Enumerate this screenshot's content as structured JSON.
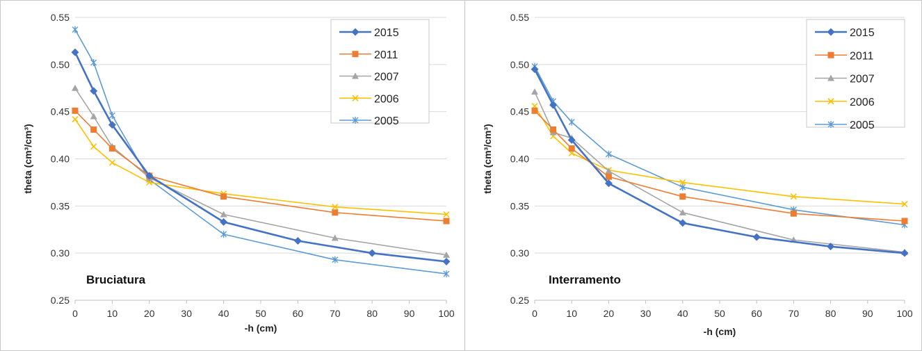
{
  "colors": {
    "2015": "#4472C4",
    "2011": "#ED7D31",
    "2007": "#A5A5A5",
    "2006": "#FFC000",
    "2005": "#5B9BD5",
    "grid": "#d9d9d9",
    "axis": "#bfbfbf"
  },
  "chart_data": [
    {
      "type": "line",
      "panel_label": "Bruciatura",
      "xlabel": "-h (cm)",
      "ylabel": "theta (cm³/cm³)",
      "xlim": [
        0,
        100
      ],
      "ylim": [
        0.25,
        0.55
      ],
      "xticks": [
        "0",
        "10",
        "20",
        "30",
        "40",
        "50",
        "60",
        "70",
        "80",
        "90",
        "100"
      ],
      "yticks": [
        "0.25",
        "0.30",
        "0.35",
        "0.40",
        "0.45",
        "0.50",
        "0.55"
      ],
      "grid": "horizontal",
      "legend": "top-right",
      "series": [
        {
          "name": "2015",
          "marker": "diamond",
          "x": [
            0,
            5,
            10,
            20,
            40,
            60,
            80,
            100
          ],
          "y": [
            0.513,
            0.472,
            0.436,
            0.382,
            0.333,
            0.313,
            0.3,
            0.291
          ]
        },
        {
          "name": "2011",
          "marker": "square",
          "x": [
            0,
            5,
            10,
            20,
            40,
            70,
            100
          ],
          "y": [
            0.451,
            0.431,
            0.411,
            0.382,
            0.36,
            0.343,
            0.334
          ]
        },
        {
          "name": "2007",
          "marker": "triangle",
          "x": [
            0,
            5,
            10,
            20,
            40,
            70,
            100
          ],
          "y": [
            0.475,
            0.445,
            0.413,
            0.38,
            0.341,
            0.316,
            0.298
          ]
        },
        {
          "name": "2006",
          "marker": "x",
          "x": [
            0,
            5,
            10,
            20,
            40,
            70,
            100
          ],
          "y": [
            0.442,
            0.413,
            0.396,
            0.375,
            0.363,
            0.349,
            0.341
          ]
        },
        {
          "name": "2005",
          "marker": "star",
          "x": [
            0,
            5,
            10,
            20,
            40,
            70,
            100
          ],
          "y": [
            0.537,
            0.502,
            0.446,
            0.378,
            0.32,
            0.293,
            0.278
          ]
        }
      ]
    },
    {
      "type": "line",
      "panel_label": "Interramento",
      "xlabel": "-h (cm)",
      "ylabel": "theta (cm³/cm³)",
      "xlim": [
        0,
        100
      ],
      "ylim": [
        0.25,
        0.55
      ],
      "xticks": [
        "0",
        "10",
        "20",
        "30",
        "40",
        "50",
        "60",
        "70",
        "80",
        "90",
        "100"
      ],
      "yticks": [
        "0.25",
        "0.30",
        "0.35",
        "0.40",
        "0.45",
        "0.50",
        "0.55"
      ],
      "grid": "horizontal",
      "legend": "top-right",
      "series": [
        {
          "name": "2015",
          "marker": "diamond",
          "x": [
            0,
            5,
            10,
            20,
            40,
            60,
            80,
            100
          ],
          "y": [
            0.495,
            0.457,
            0.42,
            0.374,
            0.332,
            0.317,
            0.307,
            0.3
          ]
        },
        {
          "name": "2011",
          "marker": "square",
          "x": [
            0,
            5,
            10,
            20,
            40,
            70,
            100
          ],
          "y": [
            0.451,
            0.431,
            0.411,
            0.381,
            0.36,
            0.342,
            0.334
          ]
        },
        {
          "name": "2007",
          "marker": "triangle",
          "x": [
            0,
            5,
            10,
            20,
            40,
            70,
            100
          ],
          "y": [
            0.471,
            0.428,
            0.422,
            0.387,
            0.343,
            0.314,
            0.301
          ]
        },
        {
          "name": "2006",
          "marker": "x",
          "x": [
            0,
            5,
            10,
            20,
            40,
            70,
            100
          ],
          "y": [
            0.456,
            0.424,
            0.406,
            0.388,
            0.375,
            0.36,
            0.352
          ]
        },
        {
          "name": "2005",
          "marker": "star",
          "x": [
            0,
            5,
            10,
            20,
            40,
            70,
            100
          ],
          "y": [
            0.498,
            0.461,
            0.439,
            0.405,
            0.37,
            0.346,
            0.33
          ]
        }
      ]
    }
  ]
}
